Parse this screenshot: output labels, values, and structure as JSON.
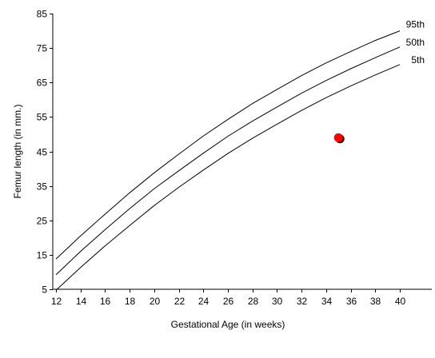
{
  "chart_data": {
    "type": "line",
    "title": "",
    "xlabel": "Gestational Age (in weeks)",
    "ylabel": "Femur length (in mm.)",
    "xlim": [
      12,
      40
    ],
    "ylim": [
      5,
      85
    ],
    "xticks": [
      12,
      14,
      16,
      18,
      20,
      22,
      24,
      26,
      28,
      30,
      32,
      34,
      36,
      38,
      40
    ],
    "yticks": [
      5,
      15,
      25,
      35,
      45,
      55,
      65,
      75,
      85
    ],
    "grid": false,
    "x": [
      12,
      14,
      16,
      18,
      20,
      22,
      24,
      26,
      28,
      30,
      32,
      34,
      36,
      38,
      40
    ],
    "series": [
      {
        "name": "95th",
        "values": [
          13.8,
          20.5,
          26.8,
          33.0,
          38.8,
          44.2,
          49.5,
          54.3,
          58.9,
          63.0,
          67.0,
          70.7,
          74.0,
          77.2,
          80.0
        ]
      },
      {
        "name": "50th",
        "values": [
          9.2,
          16.0,
          22.3,
          28.4,
          34.2,
          39.4,
          44.5,
          49.4,
          53.8,
          57.9,
          61.9,
          65.6,
          69.0,
          72.2,
          75.3
        ]
      },
      {
        "name": "5th",
        "values": [
          4.7,
          11.3,
          17.6,
          23.5,
          29.3,
          34.6,
          39.6,
          44.4,
          48.8,
          52.9,
          56.9,
          60.6,
          64.0,
          67.2,
          70.2
        ]
      }
    ],
    "marker": {
      "x": 35,
      "y": 49,
      "color": "#ff0000",
      "shadow_color": "#000000"
    },
    "colors": {
      "lines": "#000000",
      "axes": "#000000",
      "background": "#ffffff"
    }
  }
}
